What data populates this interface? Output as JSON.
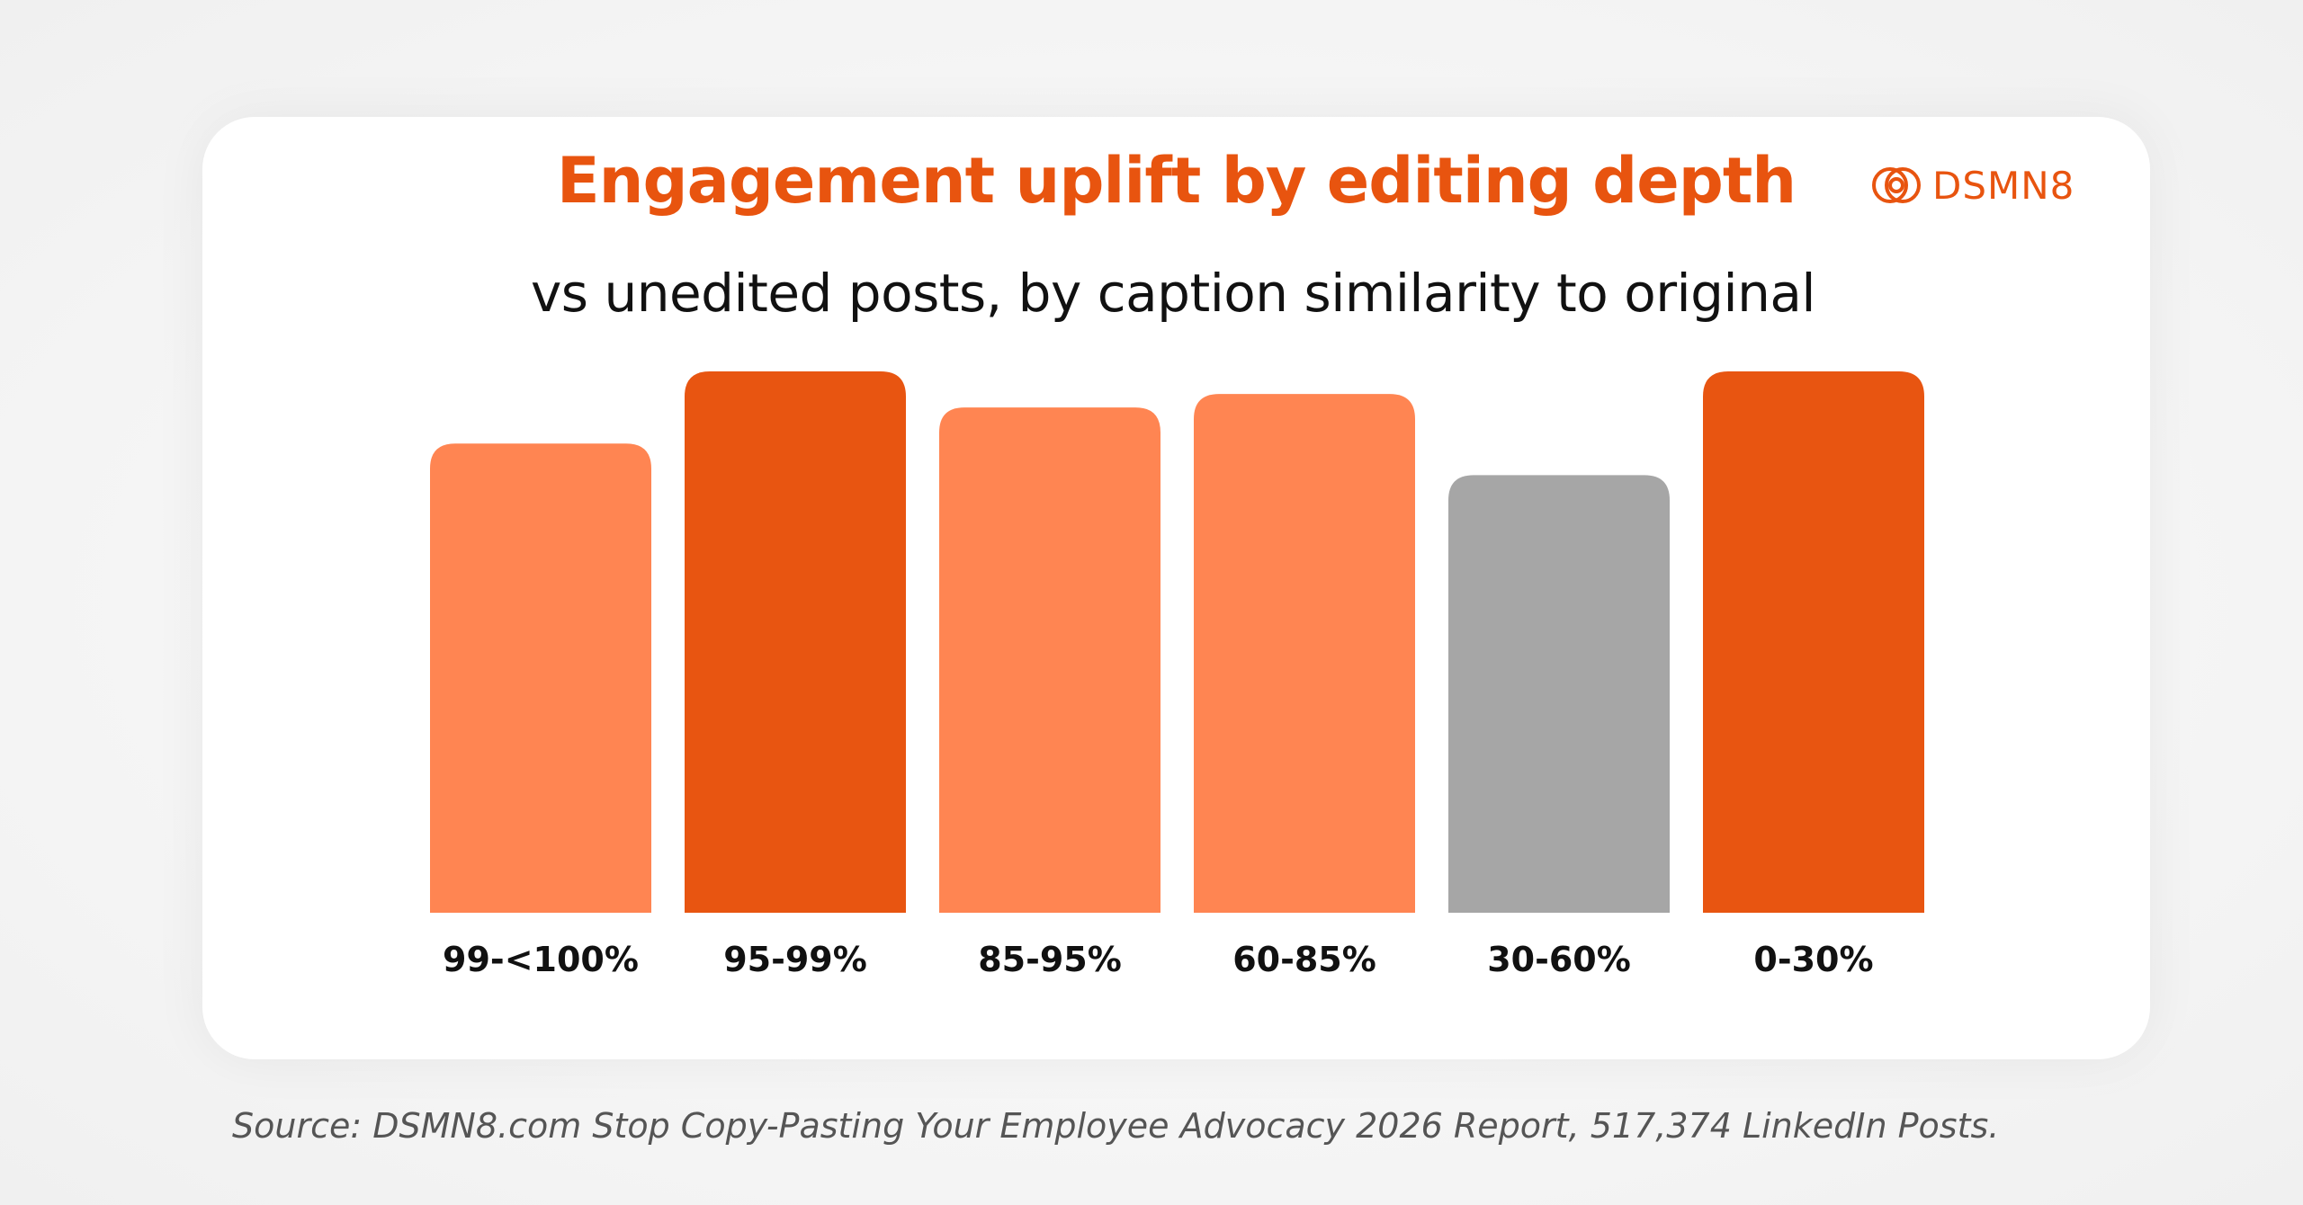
{
  "header": {
    "title": "Engagement uplift by editing depth",
    "subtitle": "vs unedited posts, by caption similarity to original"
  },
  "brand": {
    "name": "DSMN8",
    "icon": "dsmn8-logo-icon"
  },
  "colors": {
    "accent": "#e8540f",
    "light_orange": "#ff8552",
    "dark_orange": "#e85511",
    "gray": "#a6a6a6"
  },
  "chart_data": {
    "type": "bar",
    "categories": [
      "99-<100%",
      "95-99%",
      "85-95%",
      "60-85%",
      "30-60%",
      "0-30%"
    ],
    "values": [
      52,
      60,
      56,
      57.5,
      48.5,
      60
    ],
    "bar_colors": [
      "#ff8552",
      "#e85511",
      "#ff8552",
      "#ff8552",
      "#a6a6a6",
      "#e85511"
    ],
    "ylim": [
      0,
      60
    ],
    "grid": false,
    "legend": "none"
  },
  "footer": {
    "source": "Source: DSMN8.com Stop Copy-Pasting Your Employee Advocacy 2026 Report, 517,374 LinkedIn Posts."
  }
}
